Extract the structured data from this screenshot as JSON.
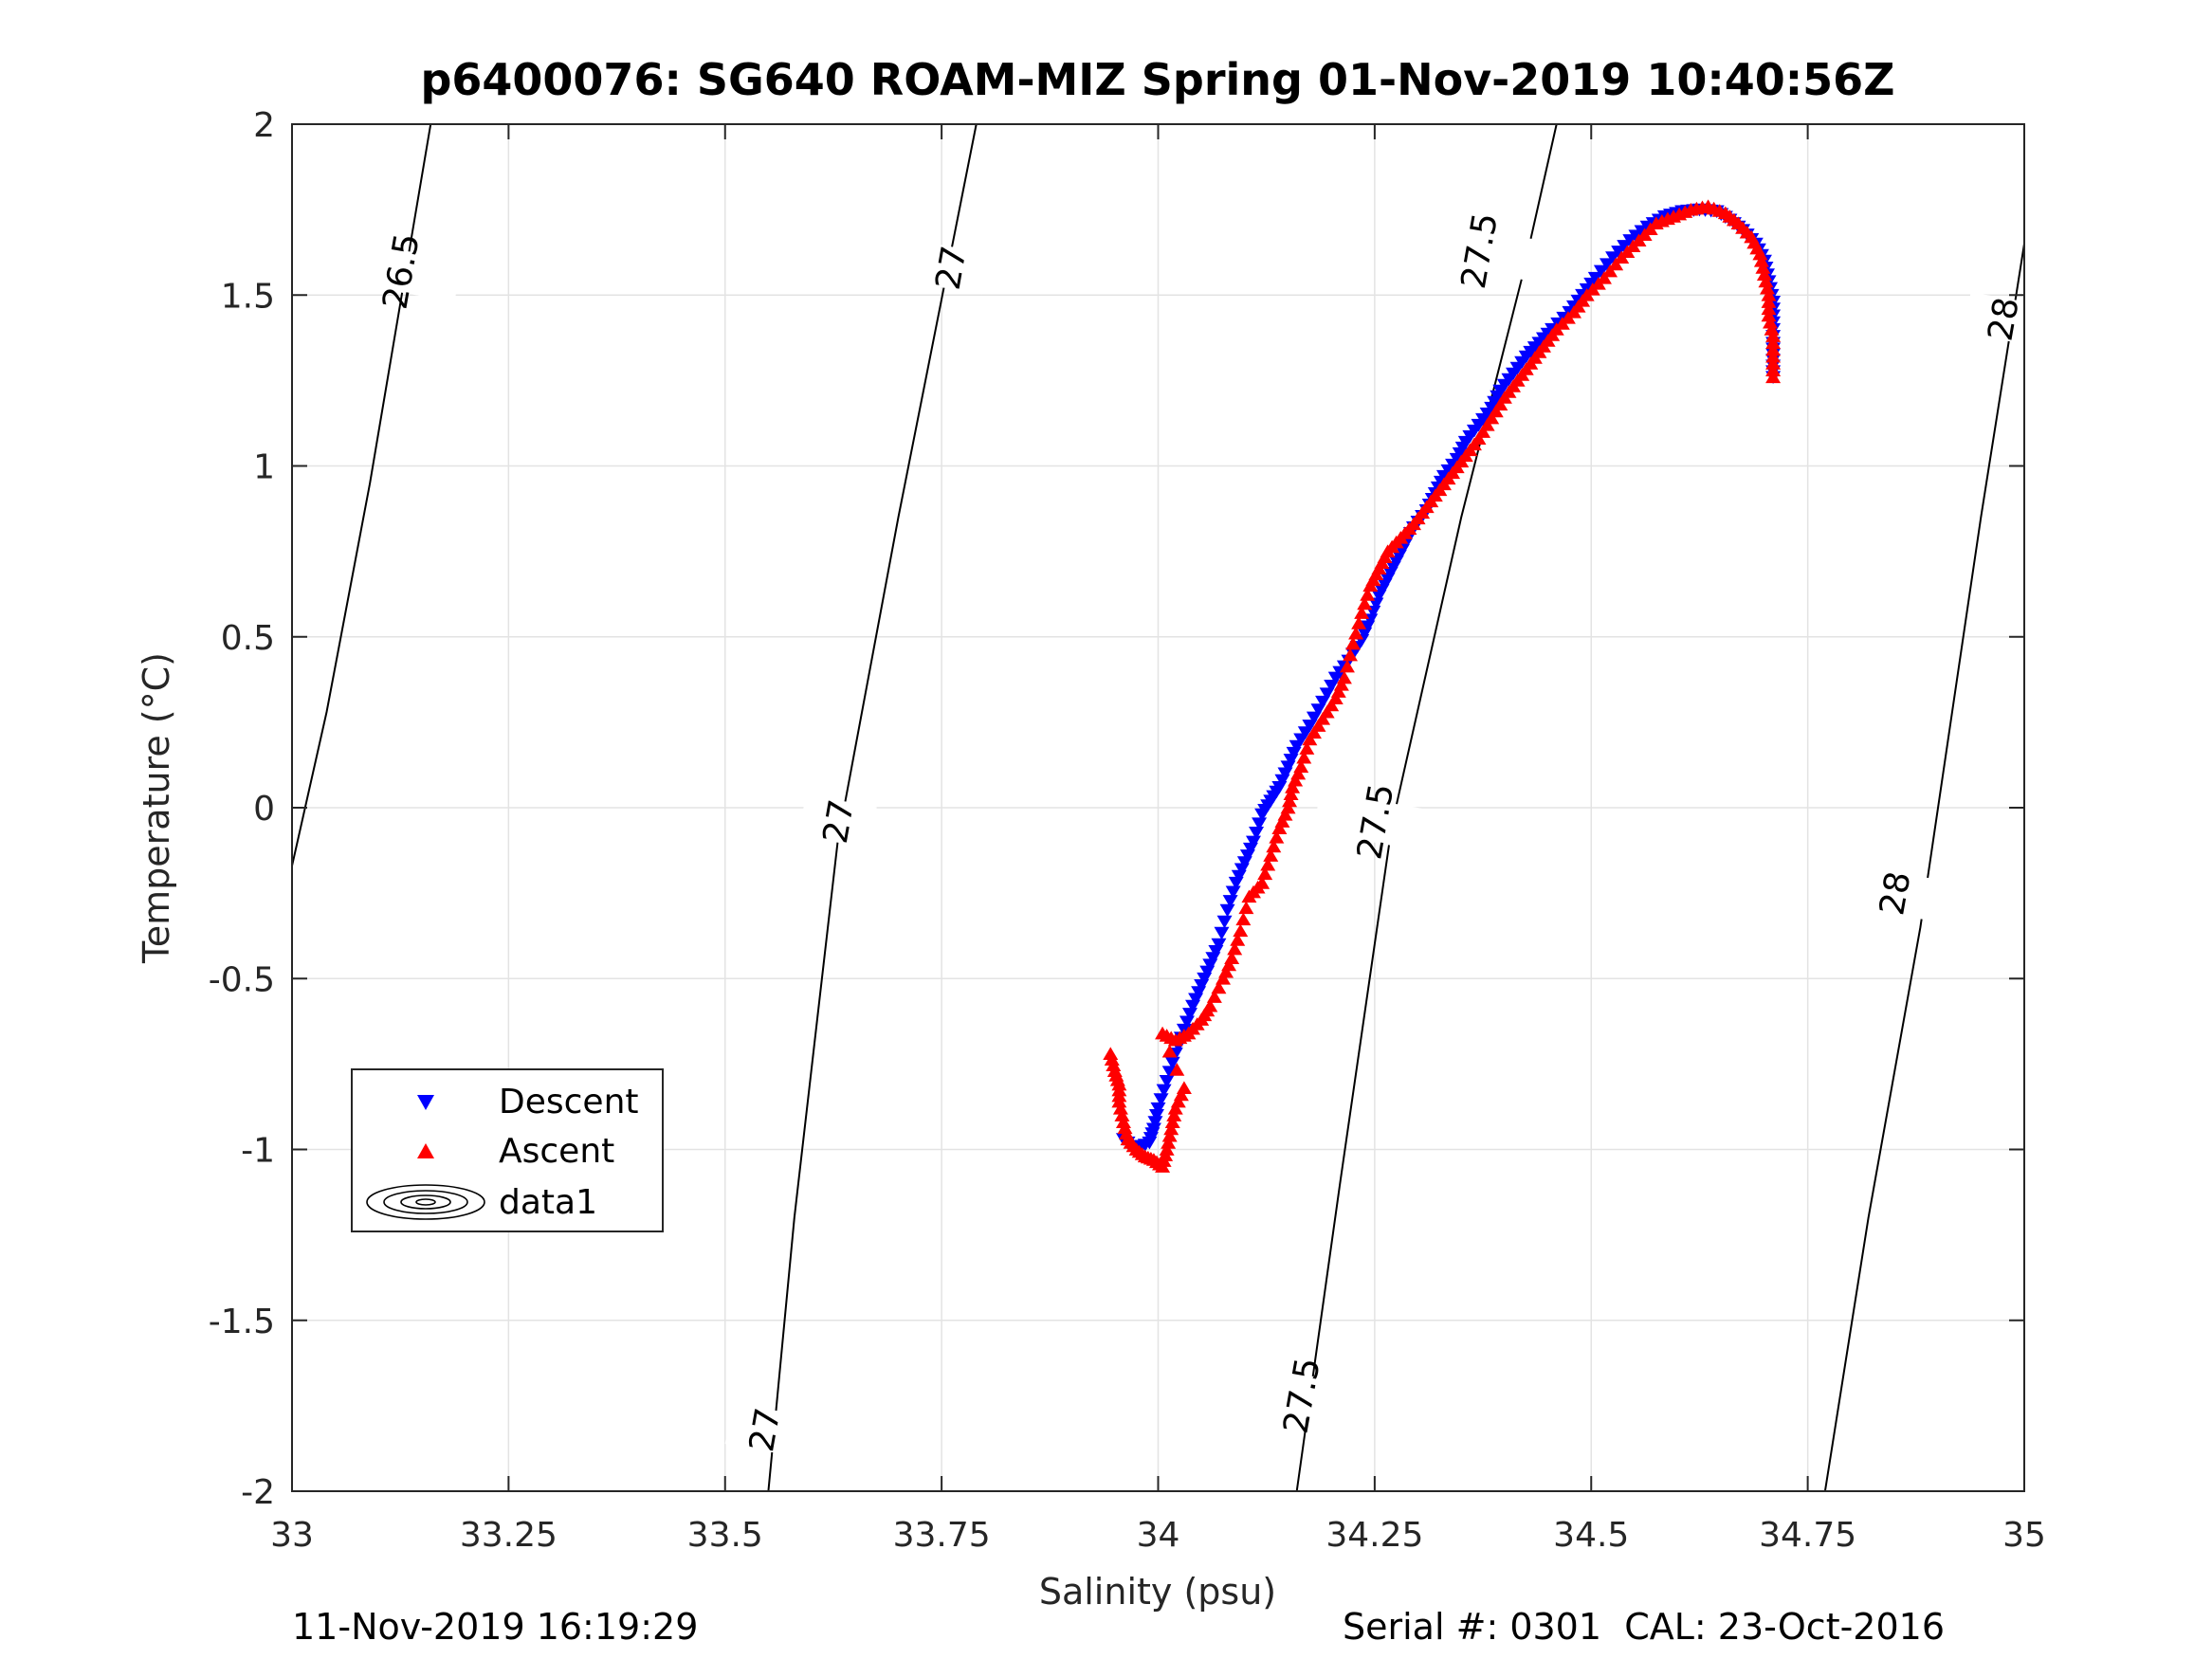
{
  "figure": {
    "title": "p6400076: SG640 ROAM-MIZ Spring 01-Nov-2019 10:40:56Z",
    "footer_left": "11-Nov-2019 16:19:29",
    "footer_right": "Serial #: 0301  CAL: 23-Oct-2016"
  },
  "chart_data": {
    "type": "scatter",
    "title": "p6400076: SG640 ROAM-MIZ Spring 01-Nov-2019 10:40:56Z",
    "xlabel": "Salinity (psu)",
    "ylabel": "Temperature (°C)",
    "xlim": [
      33,
      35
    ],
    "ylim": [
      -2,
      2
    ],
    "xticks": [
      33,
      33.25,
      33.5,
      33.75,
      34,
      34.25,
      34.5,
      34.75,
      35
    ],
    "xtick_labels": [
      "33",
      "33.25",
      "33.5",
      "33.75",
      "34",
      "34.25",
      "34.5",
      "34.75",
      "35"
    ],
    "yticks": [
      -2,
      -1.5,
      -1,
      -0.5,
      0,
      0.5,
      1,
      1.5,
      2
    ],
    "ytick_labels": [
      "-2",
      "-1.5",
      "-1",
      "-0.5",
      "0",
      "0.5",
      "1",
      "1.5",
      "2"
    ],
    "grid": true,
    "legend_position": "lower-left",
    "legend": [
      {
        "label": "Descent",
        "marker": "triangle-down",
        "color": "#0000ff"
      },
      {
        "label": "Ascent",
        "marker": "triangle-up",
        "color": "#ff0000"
      },
      {
        "label": "data1",
        "marker": "contour",
        "color": "#000000"
      }
    ],
    "series": [
      {
        "name": "Descent",
        "color": "#0000ff",
        "marker": "triangle-down",
        "points": [
          [
            34.71,
            1.26
          ],
          [
            34.71,
            1.31
          ],
          [
            34.71,
            1.36
          ],
          [
            34.71,
            1.42
          ],
          [
            34.71,
            1.48
          ],
          [
            34.705,
            1.54
          ],
          [
            34.7,
            1.6
          ],
          [
            34.69,
            1.65
          ],
          [
            34.675,
            1.69
          ],
          [
            34.66,
            1.72
          ],
          [
            34.645,
            1.745
          ],
          [
            34.625,
            1.75
          ],
          [
            34.605,
            1.745
          ],
          [
            34.585,
            1.73
          ],
          [
            34.565,
            1.7
          ],
          [
            34.545,
            1.66
          ],
          [
            34.525,
            1.61
          ],
          [
            34.505,
            1.55
          ],
          [
            34.49,
            1.5
          ],
          [
            34.475,
            1.45
          ],
          [
            34.455,
            1.4
          ],
          [
            34.44,
            1.36
          ],
          [
            34.425,
            1.32
          ],
          [
            34.41,
            1.27
          ],
          [
            34.395,
            1.22
          ],
          [
            34.385,
            1.17
          ],
          [
            34.37,
            1.12
          ],
          [
            34.355,
            1.07
          ],
          [
            34.345,
            1.02
          ],
          [
            34.33,
            0.97
          ],
          [
            34.32,
            0.92
          ],
          [
            34.31,
            0.87
          ],
          [
            34.295,
            0.82
          ],
          [
            34.285,
            0.77
          ],
          [
            34.275,
            0.72
          ],
          [
            34.265,
            0.67
          ],
          [
            34.255,
            0.62
          ],
          [
            34.245,
            0.55
          ],
          [
            34.235,
            0.49
          ],
          [
            34.22,
            0.43
          ],
          [
            34.205,
            0.38
          ],
          [
            34.19,
            0.31
          ],
          [
            34.175,
            0.24
          ],
          [
            34.16,
            0.18
          ],
          [
            34.15,
            0.12
          ],
          [
            34.14,
            0.06
          ],
          [
            34.13,
            0.02
          ],
          [
            34.12,
            -0.02
          ],
          [
            34.11,
            -0.1
          ],
          [
            34.1,
            -0.16
          ],
          [
            34.09,
            -0.22
          ],
          [
            34.08,
            -0.3
          ],
          [
            34.07,
            -0.4
          ],
          [
            34.06,
            -0.46
          ],
          [
            34.05,
            -0.52
          ],
          [
            34.04,
            -0.58
          ],
          [
            34.03,
            -0.65
          ],
          [
            34.02,
            -0.72
          ],
          [
            34.01,
            -0.8
          ],
          [
            34.0,
            -0.88
          ],
          [
            33.995,
            -0.94
          ],
          [
            33.99,
            -0.98
          ],
          [
            33.975,
            -1.0
          ],
          [
            33.96,
            -0.97
          ]
        ]
      },
      {
        "name": "Ascent",
        "color": "#ff0000",
        "marker": "triangle-up",
        "points": [
          [
            34.71,
            1.26
          ],
          [
            34.71,
            1.32
          ],
          [
            34.71,
            1.38
          ],
          [
            34.705,
            1.44
          ],
          [
            34.705,
            1.5
          ],
          [
            34.7,
            1.56
          ],
          [
            34.695,
            1.62
          ],
          [
            34.685,
            1.67
          ],
          [
            34.67,
            1.71
          ],
          [
            34.655,
            1.74
          ],
          [
            34.635,
            1.76
          ],
          [
            34.615,
            1.75
          ],
          [
            34.595,
            1.73
          ],
          [
            34.575,
            1.71
          ],
          [
            34.555,
            1.66
          ],
          [
            34.535,
            1.61
          ],
          [
            34.515,
            1.55
          ],
          [
            34.495,
            1.5
          ],
          [
            34.48,
            1.45
          ],
          [
            34.46,
            1.4
          ],
          [
            34.445,
            1.35
          ],
          [
            34.43,
            1.3
          ],
          [
            34.415,
            1.25
          ],
          [
            34.4,
            1.2
          ],
          [
            34.385,
            1.14
          ],
          [
            34.37,
            1.08
          ],
          [
            34.355,
            1.03
          ],
          [
            34.34,
            0.98
          ],
          [
            34.325,
            0.93
          ],
          [
            34.31,
            0.88
          ],
          [
            34.295,
            0.83
          ],
          [
            34.28,
            0.79
          ],
          [
            34.265,
            0.75
          ],
          [
            34.255,
            0.7
          ],
          [
            34.245,
            0.65
          ],
          [
            34.235,
            0.57
          ],
          [
            34.225,
            0.48
          ],
          [
            34.215,
            0.38
          ],
          [
            34.205,
            0.32
          ],
          [
            34.19,
            0.26
          ],
          [
            34.175,
            0.2
          ],
          [
            34.165,
            0.12
          ],
          [
            34.155,
            0.06
          ],
          [
            34.15,
            0.0
          ],
          [
            34.14,
            -0.06
          ],
          [
            34.13,
            -0.14
          ],
          [
            34.12,
            -0.22
          ],
          [
            34.105,
            -0.26
          ],
          [
            34.095,
            -0.36
          ],
          [
            34.085,
            -0.44
          ],
          [
            34.075,
            -0.5
          ],
          [
            34.06,
            -0.58
          ],
          [
            34.05,
            -0.62
          ],
          [
            34.035,
            -0.66
          ],
          [
            34.02,
            -0.68
          ],
          [
            34.005,
            -0.66
          ],
          [
            34.03,
            -0.82
          ],
          [
            34.02,
            -0.88
          ],
          [
            34.015,
            -0.94
          ],
          [
            34.01,
            -1.0
          ],
          [
            34.005,
            -1.05
          ],
          [
            33.995,
            -1.03
          ],
          [
            33.985,
            -1.02
          ],
          [
            33.975,
            -1.0
          ],
          [
            33.965,
            -0.97
          ],
          [
            33.96,
            -0.92
          ],
          [
            33.955,
            -0.86
          ],
          [
            33.955,
            -0.81
          ],
          [
            33.95,
            -0.77
          ],
          [
            33.945,
            -0.72
          ]
        ]
      }
    ],
    "contours": [
      {
        "label": "26.5",
        "points": [
          [
            33.0,
            -0.17
          ],
          [
            33.04,
            0.28
          ],
          [
            33.09,
            0.95
          ],
          [
            33.16,
            2.0
          ]
        ],
        "labels_at": [
          [
            33.125,
            1.57
          ]
        ]
      },
      {
        "label": "27",
        "points": [
          [
            33.55,
            -2.0
          ],
          [
            33.58,
            -1.2
          ],
          [
            33.63,
            -0.1
          ],
          [
            33.7,
            0.85
          ],
          [
            33.79,
            2.0
          ]
        ],
        "labels_at": [
          [
            33.545,
            -1.82
          ],
          [
            33.63,
            -0.04
          ],
          [
            33.76,
            1.58
          ]
        ]
      },
      {
        "label": "27.5",
        "points": [
          [
            34.16,
            -2.0
          ],
          [
            34.21,
            -1.1
          ],
          [
            34.27,
            -0.05
          ],
          [
            34.35,
            0.85
          ],
          [
            34.42,
            1.55
          ],
          [
            34.46,
            2.0
          ]
        ],
        "labels_at": [
          [
            34.165,
            -1.72
          ],
          [
            34.25,
            -0.04
          ],
          [
            34.37,
            1.63
          ]
        ]
      },
      {
        "label": "28",
        "points": [
          [
            34.77,
            -2.0
          ],
          [
            34.82,
            -1.2
          ],
          [
            34.88,
            -0.35
          ],
          [
            34.95,
            0.85
          ],
          [
            35.0,
            1.65
          ]
        ],
        "labels_at": [
          [
            34.85,
            -0.25
          ],
          [
            34.975,
            1.43
          ]
        ]
      }
    ]
  }
}
